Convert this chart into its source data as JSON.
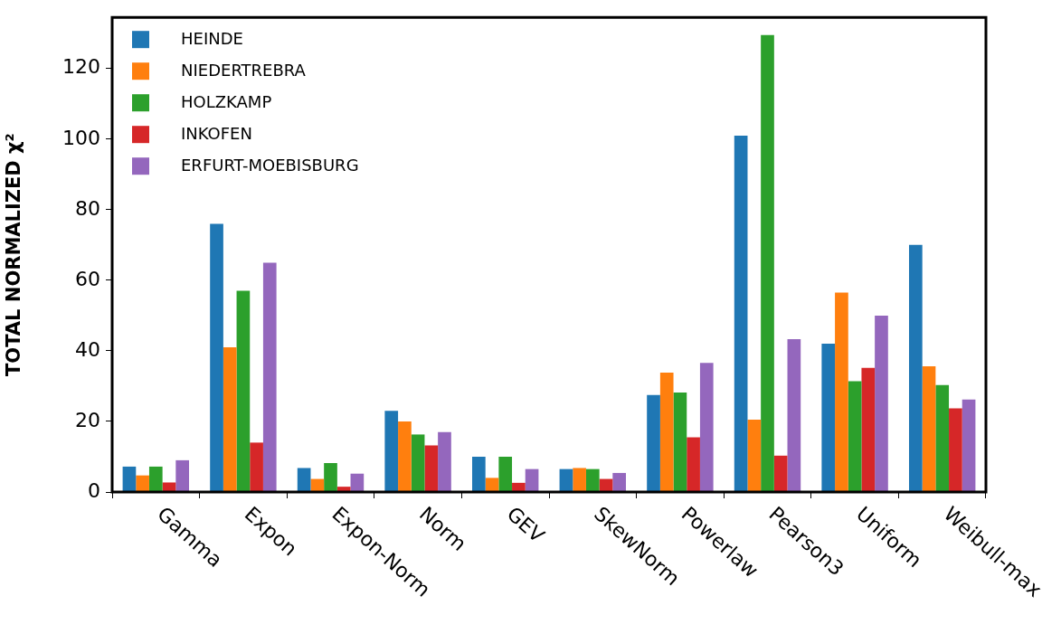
{
  "chart_data": {
    "type": "bar",
    "ylabel": "TOTAL NORMALIZED χ²",
    "categories": [
      "Gamma",
      "Expon",
      "Expon-Norm",
      "Norm",
      "GEV",
      "SkewNorm",
      "Powerlaw",
      "Pearson3",
      "Uniform",
      "Weibull-max"
    ],
    "series": [
      {
        "name": "HEINDE",
        "color": "#1f77b4",
        "values": [
          7.2,
          76,
          6.8,
          23,
          10,
          6.5,
          27.5,
          101,
          42,
          70
        ]
      },
      {
        "name": "NIEDERTREBRA",
        "color": "#ff7f0e",
        "values": [
          4.7,
          41,
          3.7,
          20,
          4,
          6.8,
          33.8,
          20.5,
          56.5,
          35.6
        ]
      },
      {
        "name": "HOLZKAMP",
        "color": "#2ca02c",
        "values": [
          7.2,
          57,
          8.2,
          16.3,
          10,
          6.5,
          28.2,
          129.5,
          31.4,
          30.3
        ]
      },
      {
        "name": "INKOFEN",
        "color": "#d62728",
        "values": [
          2.7,
          14,
          1.5,
          13.2,
          2.6,
          3.7,
          15.5,
          10.3,
          35.2,
          23.7
        ]
      },
      {
        "name": "ERFURT-MOEBISBURG",
        "color": "#9467bd",
        "values": [
          9,
          65,
          5.2,
          17,
          6.5,
          5.4,
          36.6,
          43.3,
          50,
          26.2
        ]
      }
    ],
    "ylim": [
      0,
      134.5
    ],
    "yticks": [
      0,
      20,
      40,
      60,
      80,
      100,
      120
    ],
    "grid": false,
    "legend": "top left"
  }
}
